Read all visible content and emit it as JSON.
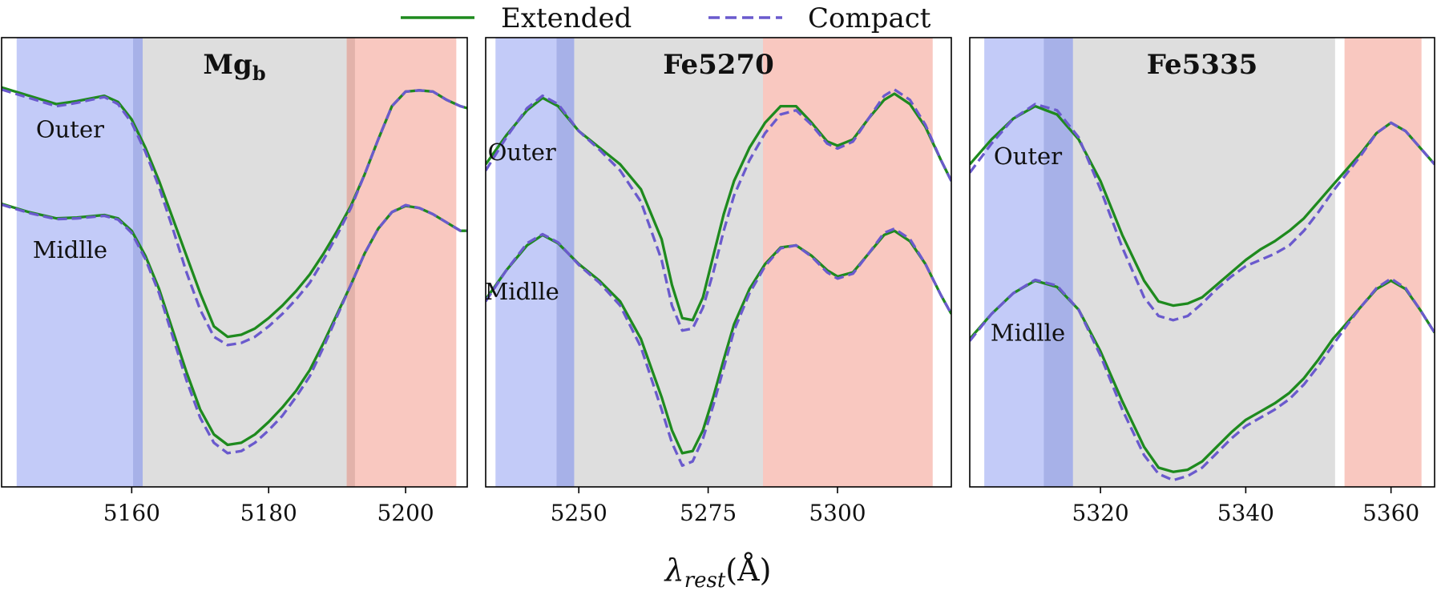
{
  "colors": {
    "extended": "#1e8a1e",
    "compact": "#6a5acd",
    "blue_band": "#c3cbf8",
    "blue_overlap": "#a7b1e8",
    "grey_band": "#dedede",
    "red_band": "#f9c8c0",
    "red_overlap": "#e2b2aa"
  },
  "legend": {
    "extended": "Extended",
    "compact": "Compact"
  },
  "xlabel": {
    "symbol": "λ",
    "subscript": "rest",
    "unit": "(Å)"
  },
  "chart_data": [
    {
      "type": "line",
      "title": "Mg",
      "title_subscript": "b",
      "xlim": [
        5141,
        5209
      ],
      "xticks": [
        5160,
        5180,
        5200
      ],
      "ylim": [
        0,
        1
      ],
      "bands": {
        "blue": [
          5143.2,
          5161.6
        ],
        "blue_overlap": [
          5160.2,
          5161.6
        ],
        "grey": [
          5160.2,
          5192.6
        ],
        "red": [
          5191.4,
          5207.4
        ],
        "red_overlap": [
          5191.4,
          5192.6
        ]
      },
      "labels": [
        {
          "text": "Outer",
          "x": 5151,
          "y": 0.825
        },
        {
          "text": "Midlle",
          "x": 5151,
          "y": 0.535
        }
      ],
      "series": [
        {
          "name": "Extended",
          "profile": "outer",
          "x": [
            5141,
            5145,
            5149,
            5152,
            5156,
            5158,
            5160,
            5162,
            5164,
            5166,
            5168,
            5170,
            5172,
            5174,
            5176,
            5178,
            5180,
            5182,
            5184,
            5186,
            5188,
            5190,
            5192,
            5194,
            5196,
            5198,
            5200,
            5202,
            5204,
            5206,
            5208,
            5209
          ],
          "y": [
            0.945,
            0.925,
            0.905,
            0.912,
            0.925,
            0.91,
            0.868,
            0.8,
            0.72,
            0.63,
            0.54,
            0.45,
            0.37,
            0.345,
            0.35,
            0.365,
            0.39,
            0.42,
            0.455,
            0.495,
            0.545,
            0.6,
            0.66,
            0.735,
            0.82,
            0.9,
            0.935,
            0.938,
            0.935,
            0.915,
            0.9,
            0.895
          ]
        },
        {
          "name": "Compact",
          "profile": "outer",
          "x": [
            5141,
            5145,
            5149,
            5152,
            5156,
            5158,
            5160,
            5162,
            5164,
            5166,
            5168,
            5170,
            5172,
            5174,
            5176,
            5178,
            5180,
            5182,
            5184,
            5186,
            5188,
            5190,
            5192,
            5194,
            5196,
            5198,
            5200,
            5202,
            5204,
            5206,
            5208,
            5209
          ],
          "y": [
            0.94,
            0.92,
            0.9,
            0.908,
            0.922,
            0.905,
            0.86,
            0.79,
            0.705,
            0.605,
            0.5,
            0.41,
            0.345,
            0.325,
            0.33,
            0.345,
            0.37,
            0.4,
            0.435,
            0.475,
            0.53,
            0.59,
            0.655,
            0.735,
            0.82,
            0.9,
            0.935,
            0.938,
            0.935,
            0.915,
            0.9,
            0.895
          ]
        },
        {
          "name": "Extended",
          "profile": "middle",
          "x": [
            5141,
            5145,
            5149,
            5152,
            5156,
            5158,
            5160,
            5162,
            5164,
            5166,
            5168,
            5170,
            5172,
            5174,
            5176,
            5178,
            5180,
            5182,
            5184,
            5186,
            5188,
            5190,
            5192,
            5194,
            5196,
            5198,
            5200,
            5202,
            5204,
            5206,
            5208,
            5209
          ],
          "y": [
            0.665,
            0.645,
            0.63,
            0.632,
            0.638,
            0.63,
            0.6,
            0.54,
            0.46,
            0.36,
            0.26,
            0.17,
            0.11,
            0.085,
            0.09,
            0.11,
            0.14,
            0.175,
            0.215,
            0.265,
            0.33,
            0.4,
            0.47,
            0.545,
            0.605,
            0.645,
            0.66,
            0.655,
            0.64,
            0.62,
            0.6,
            0.6
          ]
        },
        {
          "name": "Compact",
          "profile": "middle",
          "x": [
            5141,
            5145,
            5149,
            5152,
            5156,
            5158,
            5160,
            5162,
            5164,
            5166,
            5168,
            5170,
            5172,
            5174,
            5176,
            5178,
            5180,
            5182,
            5184,
            5186,
            5188,
            5190,
            5192,
            5194,
            5196,
            5198,
            5200,
            5202,
            5204,
            5206,
            5208,
            5209
          ],
          "y": [
            0.663,
            0.643,
            0.628,
            0.63,
            0.636,
            0.627,
            0.595,
            0.532,
            0.45,
            0.345,
            0.24,
            0.15,
            0.09,
            0.065,
            0.07,
            0.09,
            0.12,
            0.155,
            0.2,
            0.25,
            0.32,
            0.395,
            0.47,
            0.545,
            0.605,
            0.645,
            0.662,
            0.655,
            0.64,
            0.62,
            0.6,
            0.6
          ]
        }
      ]
    },
    {
      "type": "line",
      "title": "Fe5270",
      "xlim": [
        5232,
        5322
      ],
      "xticks": [
        5250,
        5275,
        5300
      ],
      "ylim": [
        0,
        1
      ],
      "bands": {
        "blue": [
          5233.9,
          5249.1
        ],
        "blue_overlap": [
          5245.7,
          5249.1
        ],
        "grey": [
          5245.7,
          5285.6
        ],
        "red": [
          5285.6,
          5318.4
        ]
      },
      "labels": [
        {
          "text": "Outer",
          "x": 5239,
          "y": 0.77
        },
        {
          "text": "Midlle",
          "x": 5239,
          "y": 0.435
        }
      ],
      "series": [
        {
          "name": "Extended",
          "profile": "outer",
          "x": [
            5232,
            5236,
            5240,
            5243,
            5246,
            5250,
            5254,
            5258,
            5262,
            5266,
            5268,
            5270,
            5272,
            5274,
            5276,
            5278,
            5280,
            5283,
            5286,
            5289,
            5292,
            5295,
            5298,
            5300,
            5303,
            5306,
            5309,
            5311,
            5314,
            5317,
            5320,
            5322
          ],
          "y": [
            0.76,
            0.83,
            0.89,
            0.92,
            0.9,
            0.84,
            0.8,
            0.76,
            0.7,
            0.58,
            0.47,
            0.39,
            0.385,
            0.44,
            0.54,
            0.64,
            0.72,
            0.8,
            0.86,
            0.9,
            0.9,
            0.86,
            0.815,
            0.805,
            0.82,
            0.87,
            0.915,
            0.93,
            0.905,
            0.85,
            0.77,
            0.72
          ]
        },
        {
          "name": "Compact",
          "profile": "outer",
          "x": [
            5232,
            5236,
            5240,
            5243,
            5246,
            5250,
            5254,
            5258,
            5262,
            5266,
            5268,
            5270,
            5272,
            5274,
            5276,
            5278,
            5280,
            5283,
            5286,
            5289,
            5292,
            5295,
            5298,
            5300,
            5303,
            5306,
            5309,
            5311,
            5314,
            5317,
            5320,
            5322
          ],
          "y": [
            0.745,
            0.825,
            0.895,
            0.925,
            0.905,
            0.84,
            0.795,
            0.745,
            0.67,
            0.53,
            0.42,
            0.36,
            0.365,
            0.415,
            0.5,
            0.6,
            0.685,
            0.77,
            0.835,
            0.88,
            0.89,
            0.855,
            0.81,
            0.798,
            0.815,
            0.87,
            0.925,
            0.94,
            0.915,
            0.855,
            0.77,
            0.72
          ]
        },
        {
          "name": "Extended",
          "profile": "middle",
          "x": [
            5232,
            5236,
            5240,
            5243,
            5246,
            5250,
            5254,
            5258,
            5262,
            5266,
            5268,
            5270,
            5272,
            5274,
            5276,
            5278,
            5280,
            5283,
            5286,
            5289,
            5292,
            5295,
            5298,
            5300,
            5303,
            5306,
            5309,
            5311,
            5314,
            5317,
            5320,
            5322
          ],
          "y": [
            0.435,
            0.505,
            0.565,
            0.59,
            0.57,
            0.52,
            0.48,
            0.43,
            0.34,
            0.2,
            0.12,
            0.065,
            0.07,
            0.12,
            0.2,
            0.29,
            0.375,
            0.46,
            0.52,
            0.56,
            0.565,
            0.54,
            0.505,
            0.49,
            0.5,
            0.545,
            0.59,
            0.6,
            0.575,
            0.52,
            0.445,
            0.4
          ]
        },
        {
          "name": "Compact",
          "profile": "middle",
          "x": [
            5232,
            5236,
            5240,
            5243,
            5246,
            5250,
            5254,
            5258,
            5262,
            5266,
            5268,
            5270,
            5272,
            5274,
            5276,
            5278,
            5280,
            5283,
            5286,
            5289,
            5292,
            5295,
            5298,
            5300,
            5303,
            5306,
            5309,
            5311,
            5314,
            5317,
            5320,
            5322
          ],
          "y": [
            0.43,
            0.505,
            0.57,
            0.592,
            0.572,
            0.518,
            0.475,
            0.42,
            0.32,
            0.17,
            0.09,
            0.035,
            0.045,
            0.1,
            0.18,
            0.27,
            0.36,
            0.45,
            0.515,
            0.558,
            0.565,
            0.538,
            0.5,
            0.485,
            0.497,
            0.545,
            0.595,
            0.605,
            0.58,
            0.52,
            0.445,
            0.4
          ]
        }
      ]
    },
    {
      "type": "line",
      "title": "Fe5335",
      "xlim": [
        5302,
        5366
      ],
      "xticks": [
        5320,
        5340,
        5360
      ],
      "ylim": [
        0,
        1
      ],
      "bands": {
        "blue": [
          5304.0,
          5316.2
        ],
        "blue_overlap": [
          5312.2,
          5316.2
        ],
        "grey": [
          5312.2,
          5352.3
        ],
        "red": [
          5353.6,
          5364.2
        ]
      },
      "labels": [
        {
          "text": "Outer",
          "x": 5310,
          "y": 0.76
        },
        {
          "text": "Midlle",
          "x": 5310,
          "y": 0.335
        }
      ],
      "series": [
        {
          "name": "Extended",
          "profile": "outer",
          "x": [
            5302,
            5305,
            5308,
            5311,
            5314,
            5317,
            5320,
            5323,
            5326,
            5328,
            5330,
            5332,
            5334,
            5336,
            5338,
            5340,
            5342,
            5344,
            5346,
            5348,
            5350,
            5352,
            5354,
            5356,
            5358,
            5360,
            5362,
            5364,
            5366
          ],
          "y": [
            0.76,
            0.82,
            0.87,
            0.9,
            0.88,
            0.82,
            0.72,
            0.59,
            0.48,
            0.43,
            0.42,
            0.425,
            0.44,
            0.47,
            0.5,
            0.53,
            0.555,
            0.575,
            0.6,
            0.63,
            0.67,
            0.71,
            0.75,
            0.79,
            0.835,
            0.86,
            0.84,
            0.8,
            0.76
          ]
        },
        {
          "name": "Compact",
          "profile": "outer",
          "x": [
            5302,
            5305,
            5308,
            5311,
            5314,
            5317,
            5320,
            5323,
            5326,
            5328,
            5330,
            5332,
            5334,
            5336,
            5338,
            5340,
            5342,
            5344,
            5346,
            5348,
            5350,
            5352,
            5354,
            5356,
            5358,
            5360,
            5362,
            5364,
            5366
          ],
          "y": [
            0.74,
            0.81,
            0.87,
            0.905,
            0.89,
            0.825,
            0.7,
            0.56,
            0.44,
            0.395,
            0.385,
            0.395,
            0.425,
            0.46,
            0.49,
            0.515,
            0.53,
            0.545,
            0.565,
            0.6,
            0.645,
            0.695,
            0.74,
            0.785,
            0.835,
            0.86,
            0.84,
            0.8,
            0.76
          ]
        },
        {
          "name": "Extended",
          "profile": "middle",
          "x": [
            5302,
            5305,
            5308,
            5311,
            5314,
            5317,
            5320,
            5323,
            5326,
            5328,
            5330,
            5332,
            5334,
            5336,
            5338,
            5340,
            5342,
            5344,
            5346,
            5348,
            5350,
            5352,
            5354,
            5356,
            5358,
            5360,
            5362,
            5364,
            5366
          ],
          "y": [
            0.34,
            0.4,
            0.45,
            0.48,
            0.465,
            0.41,
            0.31,
            0.19,
            0.08,
            0.03,
            0.02,
            0.025,
            0.045,
            0.08,
            0.115,
            0.145,
            0.165,
            0.185,
            0.21,
            0.245,
            0.29,
            0.34,
            0.38,
            0.42,
            0.46,
            0.48,
            0.46,
            0.41,
            0.355
          ]
        },
        {
          "name": "Compact",
          "profile": "middle",
          "x": [
            5302,
            5305,
            5308,
            5311,
            5314,
            5317,
            5320,
            5323,
            5326,
            5328,
            5330,
            5332,
            5334,
            5336,
            5338,
            5340,
            5342,
            5344,
            5346,
            5348,
            5350,
            5352,
            5354,
            5356,
            5358,
            5360,
            5362,
            5364,
            5366
          ],
          "y": [
            0.335,
            0.4,
            0.45,
            0.482,
            0.468,
            0.41,
            0.3,
            0.17,
            0.06,
            0.015,
            0.0,
            0.01,
            0.03,
            0.065,
            0.1,
            0.13,
            0.15,
            0.17,
            0.195,
            0.23,
            0.275,
            0.325,
            0.375,
            0.42,
            0.462,
            0.485,
            0.462,
            0.41,
            0.355
          ]
        }
      ]
    }
  ]
}
